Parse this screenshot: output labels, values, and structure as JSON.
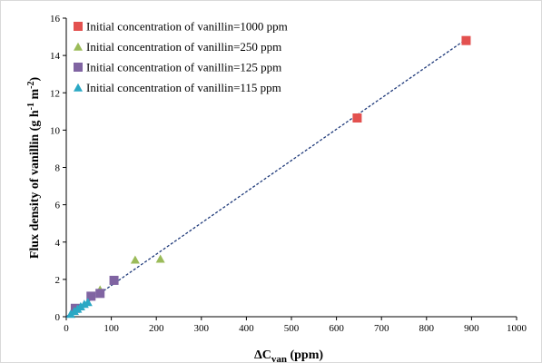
{
  "chart_data": {
    "type": "scatter",
    "xlabel": {
      "main": "ΔC",
      "sub": "van",
      "rest": "  (ppm)"
    },
    "ylabel": {
      "main": "Flux density of vanillin  (g h",
      "sup1": "-1",
      "mid": " m",
      "sup2": "-2",
      "rest": ")"
    },
    "xlim": [
      0,
      1000
    ],
    "ylim": [
      0,
      16
    ],
    "x_ticks": [
      "0",
      "100",
      "200",
      "300",
      "400",
      "500",
      "600",
      "700",
      "800",
      "900",
      "1000"
    ],
    "y_ticks": [
      "0",
      "2",
      "4",
      "6",
      "8",
      "10",
      "12",
      "14",
      "16"
    ],
    "grid": false,
    "legend_position": "top-left",
    "series": [
      {
        "name": "Initial concentration of vanillin=1000 ppm",
        "marker": "square",
        "color": "#e3514f",
        "points": [
          [
            646,
            10.65
          ],
          [
            888,
            14.8
          ]
        ]
      },
      {
        "name": "Initial concentration of vanillin=250 ppm",
        "marker": "triangle",
        "color": "#9bbb59",
        "points": [
          [
            75,
            1.45
          ],
          [
            153,
            3.05
          ],
          [
            209,
            3.1
          ]
        ]
      },
      {
        "name": "Initial concentration of vanillin=125 ppm",
        "marker": "square",
        "color": "#8064a2",
        "points": [
          [
            20,
            0.45
          ],
          [
            55,
            1.1
          ],
          [
            75,
            1.25
          ],
          [
            106,
            1.95
          ]
        ]
      },
      {
        "name": "Initial concentration of vanillin=115 ppm",
        "marker": "triangle",
        "color": "#2aa8c4",
        "points": [
          [
            10,
            0.15
          ],
          [
            18,
            0.3
          ],
          [
            25,
            0.42
          ],
          [
            32,
            0.55
          ],
          [
            40,
            0.68
          ],
          [
            48,
            0.78
          ]
        ]
      }
    ],
    "trendline": {
      "style": "dashed",
      "color": "#1f3a7a",
      "points": [
        [
          0,
          0
        ],
        [
          885,
          14.82
        ]
      ]
    }
  }
}
